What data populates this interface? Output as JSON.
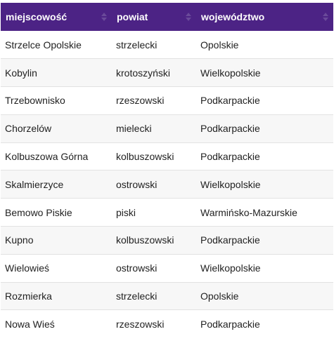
{
  "table": {
    "columns": [
      {
        "label": "miejscowość"
      },
      {
        "label": "powiat"
      },
      {
        "label": "województwo"
      }
    ],
    "rows": [
      [
        "Strzelce Opolskie",
        "strzelecki",
        "Opolskie"
      ],
      [
        "Kobylin",
        "krotoszyński",
        "Wielkopolskie"
      ],
      [
        "Trzebownisko",
        "rzeszowski",
        "Podkarpackie"
      ],
      [
        "Chorzelów",
        "mielecki",
        "Podkarpackie"
      ],
      [
        "Kolbuszowa Górna",
        "kolbuszowski",
        "Podkarpackie"
      ],
      [
        "Skalmierzyce",
        "ostrowski",
        "Wielkopolskie"
      ],
      [
        "Bemowo Piskie",
        "piski",
        "Warmińsko-Mazurskie"
      ],
      [
        "Kupno",
        "kolbuszowski",
        "Podkarpackie"
      ],
      [
        "Wielowieś",
        "ostrowski",
        "Wielkopolskie"
      ],
      [
        "Rozmierka",
        "strzelecki",
        "Opolskie"
      ],
      [
        "Nowa Wieś",
        "rzeszowski",
        "Podkarpackie"
      ]
    ]
  },
  "colors": {
    "header_bg": "#4c2385",
    "header_text": "#ffffff",
    "row_alt_bg": "#f7f7f7",
    "row_border": "#e2e2e2"
  },
  "icons": {
    "sort": "sort-icon"
  }
}
